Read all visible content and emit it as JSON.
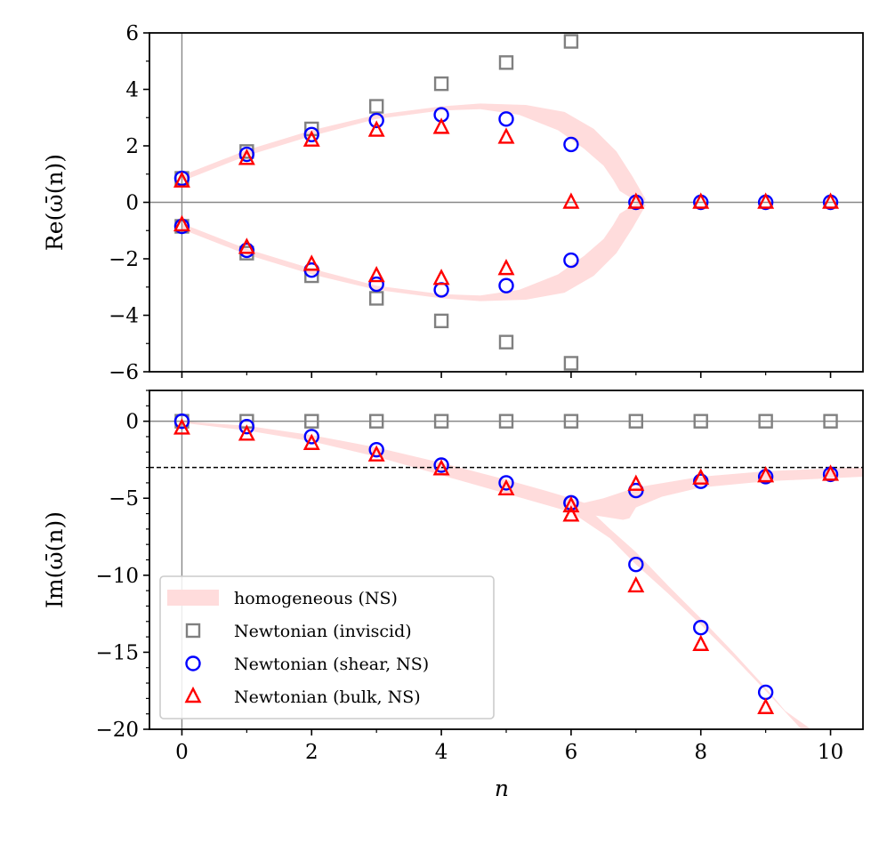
{
  "chart_data": [
    {
      "type": "scatter",
      "panel": "top",
      "ylabel": "Re(ω̄(n))",
      "xlabel": "",
      "xlim": [
        -0.5,
        10.5
      ],
      "ylim": [
        -6,
        6
      ],
      "yticks": [
        -6,
        -4,
        -2,
        0,
        2,
        4,
        6
      ],
      "ytick_labels": [
        "−6",
        "−4",
        "−2",
        "0",
        "2",
        "4",
        "6"
      ],
      "xticks": [
        0,
        2,
        4,
        6,
        8,
        10
      ],
      "reference_lines": [
        {
          "axis": "y",
          "value": 0
        },
        {
          "axis": "x",
          "value": 0
        }
      ],
      "band": {
        "name": "homogeneous (NS)",
        "color": "#ffdcdc",
        "upper": {
          "x": [
            0,
            1,
            2,
            3,
            4,
            4.6,
            5.2,
            5.8,
            6.2,
            6.5,
            6.65,
            6.75,
            6.95,
            7.05,
            7.1,
            7.15,
            6.95,
            6.7,
            6.35,
            5.9,
            5.3,
            4.6,
            4,
            3,
            2,
            1,
            0
          ],
          "y": [
            0.75,
            1.65,
            2.35,
            2.95,
            3.25,
            3.3,
            3.1,
            2.55,
            1.9,
            1.3,
            0.8,
            0.4,
            0.12,
            0,
            0,
            0.1,
            0.9,
            1.8,
            2.6,
            3.2,
            3.45,
            3.5,
            3.4,
            3.1,
            2.55,
            1.85,
            0.95
          ]
        },
        "lower": {
          "x": [
            0,
            1,
            2,
            3,
            4,
            4.6,
            5.2,
            5.8,
            6.2,
            6.5,
            6.65,
            6.75,
            6.95,
            7.05,
            7.1,
            7.15,
            6.95,
            6.7,
            6.35,
            5.9,
            5.3,
            4.6,
            4,
            3,
            2,
            1,
            0
          ],
          "y": [
            -0.75,
            -1.65,
            -2.35,
            -2.95,
            -3.25,
            -3.3,
            -3.1,
            -2.55,
            -1.9,
            -1.3,
            -0.8,
            -0.4,
            -0.12,
            0,
            0,
            -0.1,
            -0.9,
            -1.8,
            -2.6,
            -3.2,
            -3.45,
            -3.5,
            -3.4,
            -3.1,
            -2.55,
            -1.85,
            -0.95
          ]
        }
      },
      "series": [
        {
          "name": "Newtonian (inviscid)",
          "marker": "square",
          "color": "#808080",
          "x": [
            0,
            1,
            2,
            3,
            4,
            5,
            6,
            0,
            1,
            2,
            3,
            4,
            5,
            6
          ],
          "y": [
            0.85,
            1.8,
            2.6,
            3.4,
            4.2,
            4.95,
            5.7,
            -0.85,
            -1.8,
            -2.6,
            -3.4,
            -4.2,
            -4.95,
            -5.7
          ]
        },
        {
          "name": "Newtonian (shear, NS)",
          "marker": "circle",
          "color": "#0000ff",
          "x": [
            0,
            1,
            2,
            3,
            4,
            5,
            6,
            7,
            8,
            9,
            10,
            0,
            1,
            2,
            3,
            4,
            5,
            6
          ],
          "y": [
            0.85,
            1.7,
            2.4,
            2.9,
            3.1,
            2.95,
            2.05,
            0,
            0,
            0,
            0,
            -0.85,
            -1.7,
            -2.4,
            -2.9,
            -3.1,
            -2.95,
            -2.05
          ]
        },
        {
          "name": "Newtonian (bulk, NS)",
          "marker": "triangle",
          "color": "#ff0000",
          "x": [
            0,
            1,
            2,
            3,
            4,
            5,
            6,
            7,
            8,
            9,
            10,
            0,
            1,
            2,
            3,
            4,
            5
          ],
          "y": [
            0.75,
            1.55,
            2.2,
            2.55,
            2.65,
            2.3,
            0,
            0,
            0,
            0,
            0,
            -0.8,
            -1.6,
            -2.2,
            -2.6,
            -2.7,
            -2.35
          ]
        }
      ]
    },
    {
      "type": "scatter",
      "panel": "bottom",
      "ylabel": "Im(ω̄(n))",
      "xlabel": "n",
      "xlim": [
        -0.5,
        10.5
      ],
      "ylim": [
        -20,
        2
      ],
      "yticks": [
        -20,
        -15,
        -10,
        -5,
        0
      ],
      "ytick_labels": [
        "−20",
        "−15",
        "−10",
        "−5",
        "0"
      ],
      "xticks": [
        0,
        2,
        4,
        6,
        8,
        10
      ],
      "xtick_labels": [
        "0",
        "2",
        "4",
        "6",
        "8",
        "10"
      ],
      "reference_lines": [
        {
          "axis": "y",
          "value": 0
        },
        {
          "axis": "x",
          "value": 0
        },
        {
          "axis": "y",
          "value": -3,
          "style": "dashed"
        }
      ],
      "band": {
        "name": "homogeneous (NS)",
        "color": "#ffdcdc",
        "branch_upper": {
          "x": [
            0,
            1,
            2,
            3,
            4,
            5,
            5.6,
            6,
            6.2,
            6.5,
            7,
            8,
            9,
            10,
            10.5,
            10.5,
            10,
            9,
            8,
            7.4,
            7,
            6.9,
            6.8,
            6.5,
            6,
            5,
            4,
            3,
            2,
            1,
            0
          ],
          "y": [
            0,
            -0.3,
            -0.9,
            -1.7,
            -2.7,
            -3.8,
            -4.5,
            -5.0,
            -5.3,
            -5.0,
            -4.3,
            -3.6,
            -3.25,
            -3.05,
            -3.0,
            -3.6,
            -3.7,
            -3.9,
            -4.3,
            -4.9,
            -5.6,
            -6.3,
            -6.4,
            -6.2,
            -5.9,
            -4.7,
            -3.5,
            -2.3,
            -1.3,
            -0.6,
            -0.1
          ]
        },
        "branch_lower": {
          "x": [
            6.2,
            6.6,
            7,
            7.5,
            8,
            8.5,
            9,
            9.3,
            9.7,
            9.55,
            9.0,
            8.5,
            8.0,
            7.5,
            7.0,
            6.6,
            6.0
          ],
          "y": [
            -5.4,
            -7.0,
            -8.5,
            -10.7,
            -12.8,
            -15.0,
            -17.3,
            -18.8,
            -20,
            -20,
            -17.5,
            -15.3,
            -13.2,
            -11.2,
            -9.3,
            -7.6,
            -5.9
          ]
        }
      },
      "series": [
        {
          "name": "Newtonian (inviscid)",
          "marker": "square",
          "color": "#808080",
          "x": [
            0,
            1,
            2,
            3,
            4,
            5,
            6,
            7,
            8,
            9,
            10
          ],
          "y": [
            0,
            0,
            0,
            0,
            0,
            0,
            0,
            0,
            0,
            0,
            0
          ]
        },
        {
          "name": "Newtonian (shear, NS)",
          "marker": "circle",
          "color": "#0000ff",
          "x": [
            0,
            1,
            2,
            3,
            4,
            5,
            6,
            6,
            7,
            7,
            8,
            8,
            9,
            9,
            10
          ],
          "y": [
            0,
            -0.35,
            -1.0,
            -1.85,
            -2.85,
            -4.0,
            -5.3,
            -5.3,
            -4.5,
            -9.3,
            -3.9,
            -13.4,
            -3.6,
            -17.6,
            -3.45
          ]
        },
        {
          "name": "Newtonian (bulk, NS)",
          "marker": "triangle",
          "color": "#ff0000",
          "x": [
            0,
            1,
            2,
            3,
            4,
            5,
            6,
            6,
            7,
            7,
            8,
            8,
            9,
            9,
            10
          ],
          "y": [
            -0.45,
            -0.85,
            -1.45,
            -2.2,
            -3.1,
            -4.4,
            -5.5,
            -6.1,
            -4.1,
            -10.7,
            -3.7,
            -14.5,
            -3.55,
            -18.6,
            -3.45
          ]
        }
      ],
      "legend": {
        "placement": "lower-left",
        "entries": [
          "homogeneous (NS)",
          "Newtonian (inviscid)",
          "Newtonian (shear, NS)",
          "Newtonian (bulk, NS)"
        ]
      }
    }
  ]
}
